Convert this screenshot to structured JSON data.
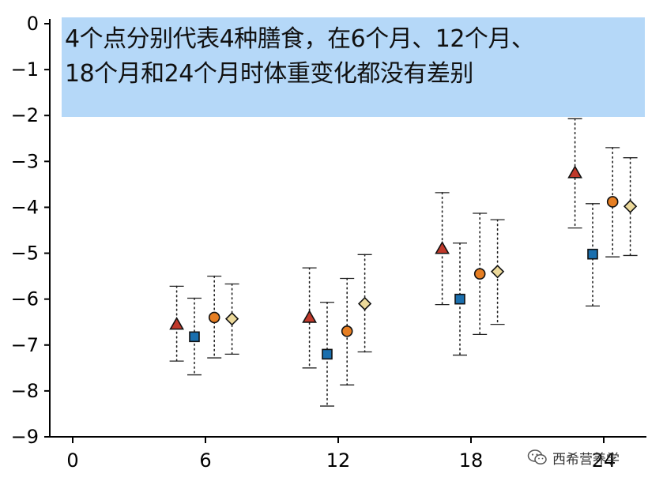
{
  "chart_data": {
    "type": "scatter",
    "subtype": "point-with-error-bars",
    "title": "",
    "xlabel": "",
    "ylabel": "",
    "xlim": [
      0,
      26
    ],
    "ylim": [
      -9,
      0
    ],
    "x_ticks": [
      "0",
      "6",
      "12",
      "18",
      "24"
    ],
    "y_ticks": [
      "0",
      "−1",
      "−2",
      "−3",
      "−4",
      "−5",
      "−6",
      "−7",
      "−8",
      "−9"
    ],
    "grid": false,
    "legend": "none",
    "annotation_lines": [
      "4个点分别代表4种膳食，在6个月、12个月、",
      "18个月和24个月时体重变化都没有差别"
    ],
    "series": [
      {
        "marker": "triangle",
        "color": "#c0392b",
        "x": [
          4.7,
          10.7,
          16.7,
          22.7
        ],
        "y": [
          -6.55,
          -6.4,
          -4.9,
          -3.25
        ],
        "y_low": [
          -7.35,
          -7.5,
          -6.12,
          -4.45
        ],
        "y_high": [
          -5.72,
          -5.32,
          -3.68,
          -2.07
        ]
      },
      {
        "marker": "square",
        "color": "#1a6fae",
        "x": [
          5.5,
          11.5,
          17.5,
          23.5
        ],
        "y": [
          -6.82,
          -7.2,
          -6.0,
          -5.02
        ],
        "y_low": [
          -7.65,
          -8.33,
          -7.22,
          -6.15
        ],
        "y_high": [
          -5.98,
          -6.07,
          -4.78,
          -3.92
        ]
      },
      {
        "marker": "circle",
        "color": "#e67e22",
        "x": [
          6.4,
          12.4,
          18.4,
          24.4
        ],
        "y": [
          -6.4,
          -6.7,
          -5.45,
          -3.88
        ],
        "y_low": [
          -7.28,
          -7.87,
          -6.77,
          -5.08
        ],
        "y_high": [
          -5.5,
          -5.55,
          -4.13,
          -2.7
        ]
      },
      {
        "marker": "diamond",
        "color": "#ecd99a",
        "x": [
          7.2,
          13.2,
          19.2,
          25.2
        ],
        "y": [
          -6.43,
          -6.1,
          -5.4,
          -3.98
        ],
        "y_low": [
          -7.2,
          -7.15,
          -6.55,
          -5.05
        ],
        "y_high": [
          -5.67,
          -5.03,
          -4.27,
          -2.92
        ]
      }
    ]
  },
  "watermark": {
    "text": "西希营养学",
    "icon": "wechat-icon"
  }
}
